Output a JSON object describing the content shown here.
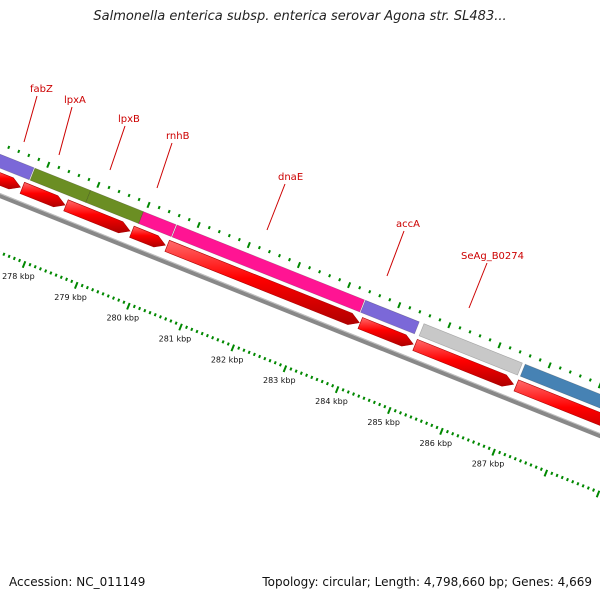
{
  "title": "Salmonella enterica subsp. enterica serovar Agona str. SL483...",
  "footer": {
    "accession": "Accession: NC_011149",
    "stats": "Topology: circular; Length: 4,798,660 bp; Genes: 4,669"
  },
  "genes": [
    {
      "name": "fabZ",
      "color": "#7b68d8"
    },
    {
      "name": "lpxA",
      "color": "#6b8e23"
    },
    {
      "name": "lpxB",
      "color": "#6b8e23"
    },
    {
      "name": "rnhB",
      "color": "#ff1493"
    },
    {
      "name": "dnaE",
      "color": "#ff1493"
    },
    {
      "name": "accA",
      "color": "#7b68d8"
    },
    {
      "name": "SeAg_B0274",
      "color": "#c8c8c8"
    },
    {
      "name": "",
      "color": "#4682b4"
    }
  ],
  "scale": {
    "unit": "kbp",
    "labels": [
      "278 kbp",
      "279 kbp",
      "280 kbp",
      "281 kbp",
      "282 kbp",
      "283 kbp",
      "284 kbp",
      "285 kbp",
      "286 kbp",
      "287 kbp"
    ]
  },
  "colors": {
    "cds": "#ff0000",
    "backbone": "#888888",
    "tick": "#008800",
    "label": "#cc0000"
  }
}
